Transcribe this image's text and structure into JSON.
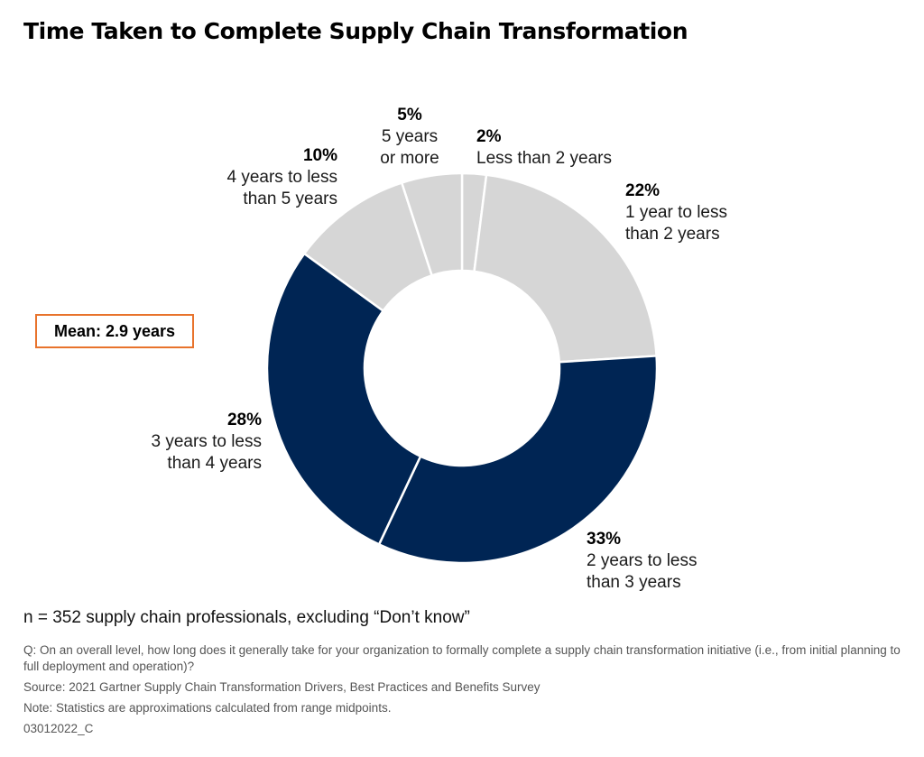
{
  "title": "Time Taken to Complete Supply Chain Transformation",
  "mean_label": "Mean: 2.9 years",
  "n_text": "n = 352 supply chain professionals, excluding “Don’t know”",
  "question": "Q: On an overall level, how long does it generally take for your organization to formally complete a supply chain transformation initiative (i.e., from initial planning to full deployment and operation)?",
  "source": "Source: 2021 Gartner Supply Chain Transformation Drivers, Best Practices and Benefits Survey",
  "note": "Note: Statistics are approximations calculated from range midpoints.",
  "code": "03012022_C",
  "colors": {
    "light": "#d6d6d6",
    "dark": "#002554",
    "accent": "#e8732c"
  },
  "chart_data": {
    "type": "pie",
    "title": "Time Taken to Complete Supply Chain Transformation",
    "slices": [
      {
        "pct_label": "2%",
        "label": "Less than 2 years",
        "value": 2,
        "color": "#d6d6d6"
      },
      {
        "pct_label": "22%",
        "label": "1 year to less\nthan 2 years",
        "value": 22,
        "color": "#d6d6d6"
      },
      {
        "pct_label": "33%",
        "label": "2 years to less\nthan 3 years",
        "value": 33,
        "color": "#002554"
      },
      {
        "pct_label": "28%",
        "label": "3 years to less\nthan 4 years",
        "value": 28,
        "color": "#002554"
      },
      {
        "pct_label": "10%",
        "label": "4 years to less\nthan 5 years",
        "value": 10,
        "color": "#d6d6d6"
      },
      {
        "pct_label": "5%",
        "label": "5 years\nor more",
        "value": 5,
        "color": "#d6d6d6"
      }
    ]
  }
}
